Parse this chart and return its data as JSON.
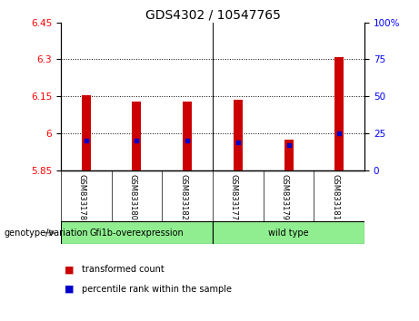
{
  "title": "GDS4302 / 10547765",
  "samples": [
    "GSM833178",
    "GSM833180",
    "GSM833182",
    "GSM833177",
    "GSM833179",
    "GSM833181"
  ],
  "group_labels": [
    "Gfi1b-overexpression",
    "wild type"
  ],
  "transformed_count": [
    6.155,
    6.13,
    6.13,
    6.135,
    5.975,
    6.31
  ],
  "baseline": 5.85,
  "percentile_rank": [
    20,
    20,
    20,
    19,
    17,
    25
  ],
  "ylim_left": [
    5.85,
    6.45
  ],
  "ylim_right": [
    0,
    100
  ],
  "yticks_left": [
    5.85,
    6.0,
    6.15,
    6.3,
    6.45
  ],
  "yticks_right": [
    0,
    25,
    50,
    75,
    100
  ],
  "ytick_labels_left": [
    "5.85",
    "6",
    "6.15",
    "6.3",
    "6.45"
  ],
  "ytick_labels_right": [
    "0",
    "25",
    "50",
    "75",
    "100%"
  ],
  "bar_color": "#CC0000",
  "marker_color": "#0000CC",
  "bg_color": "#FFFFFF",
  "plot_bg": "#FFFFFF",
  "sample_bg": "#C8C8C8",
  "group_green": "#90EE90",
  "legend_tc": "transformed count",
  "legend_pr": "percentile rank within the sample",
  "group_label": "genotype/variation",
  "title_fontsize": 10,
  "tick_fontsize": 7.5,
  "bar_width": 0.18
}
